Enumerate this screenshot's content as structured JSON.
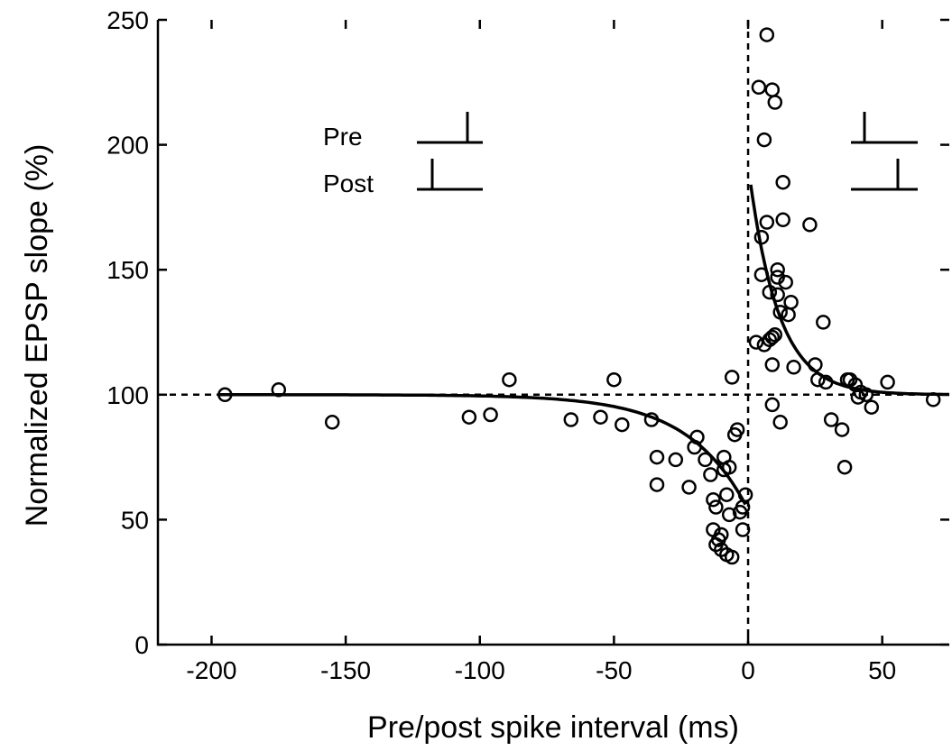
{
  "chart_data": {
    "type": "scatter",
    "xlabel": "Pre/post spike interval (ms)",
    "ylabel": "Normalized EPSP slope (%)",
    "xlim": [
      -220,
      75
    ],
    "ylim": [
      0,
      250
    ],
    "xticks": [
      -200,
      -150,
      -100,
      -50,
      0,
      50
    ],
    "yticks": [
      0,
      50,
      100,
      150,
      200,
      250
    ],
    "grid": false,
    "reference_lines": {
      "x": 0,
      "y": 100,
      "style": "dashed"
    },
    "legend": {
      "pre_label": "Pre",
      "post_label": "Post"
    },
    "points": [
      [
        -195,
        100
      ],
      [
        -175,
        102
      ],
      [
        -155,
        89
      ],
      [
        -104,
        91
      ],
      [
        -96,
        92
      ],
      [
        -89,
        106
      ],
      [
        -66,
        90
      ],
      [
        -55,
        91
      ],
      [
        -50,
        106
      ],
      [
        -47,
        88
      ],
      [
        -36,
        90
      ],
      [
        -34,
        75
      ],
      [
        -34,
        64
      ],
      [
        -27,
        74
      ],
      [
        -22,
        63
      ],
      [
        -20,
        79
      ],
      [
        -19,
        83
      ],
      [
        -16,
        74
      ],
      [
        -14,
        68
      ],
      [
        -13,
        58
      ],
      [
        -13,
        46
      ],
      [
        -12,
        55
      ],
      [
        -12,
        40
      ],
      [
        -11,
        42
      ],
      [
        -10,
        38
      ],
      [
        -10,
        44
      ],
      [
        -9,
        75
      ],
      [
        -9,
        70
      ],
      [
        -8,
        60
      ],
      [
        -8,
        36
      ],
      [
        -7,
        71
      ],
      [
        -7,
        52
      ],
      [
        -6,
        35
      ],
      [
        -5,
        84
      ],
      [
        -4,
        86
      ],
      [
        -3,
        53
      ],
      [
        -2,
        55
      ],
      [
        -2,
        46
      ],
      [
        -1,
        60
      ],
      [
        -6,
        107
      ],
      [
        3,
        121
      ],
      [
        4,
        223
      ],
      [
        5,
        148
      ],
      [
        5,
        163
      ],
      [
        6,
        202
      ],
      [
        6,
        120
      ],
      [
        7,
        244
      ],
      [
        7,
        169
      ],
      [
        8,
        141
      ],
      [
        8,
        122
      ],
      [
        9,
        112
      ],
      [
        9,
        96
      ],
      [
        9,
        123
      ],
      [
        9,
        222
      ],
      [
        10,
        124
      ],
      [
        10,
        217
      ],
      [
        11,
        147
      ],
      [
        11,
        150
      ],
      [
        11,
        140
      ],
      [
        12,
        133
      ],
      [
        12,
        89
      ],
      [
        13,
        185
      ],
      [
        13,
        170
      ],
      [
        14,
        145
      ],
      [
        15,
        132
      ],
      [
        16,
        137
      ],
      [
        17,
        111
      ],
      [
        23,
        168
      ],
      [
        25,
        112
      ],
      [
        26,
        106
      ],
      [
        28,
        129
      ],
      [
        29,
        105
      ],
      [
        31,
        90
      ],
      [
        35,
        86
      ],
      [
        36,
        71
      ],
      [
        37,
        106
      ],
      [
        38,
        106
      ],
      [
        40,
        104
      ],
      [
        41,
        99
      ],
      [
        42,
        101
      ],
      [
        44,
        100
      ],
      [
        46,
        95
      ],
      [
        52,
        105
      ],
      [
        69,
        98
      ]
    ],
    "fit_curves": [
      {
        "name": "",
        "x_range": [
          -197,
          -1
        ],
        "baseline": 100,
        "amplitude": -46,
        "tau": 22
      },
      {
        "name": "",
        "x_range": [
          1,
          75
        ],
        "baseline": 100,
        "amplitude": 92,
        "tau": 11
      }
    ]
  }
}
